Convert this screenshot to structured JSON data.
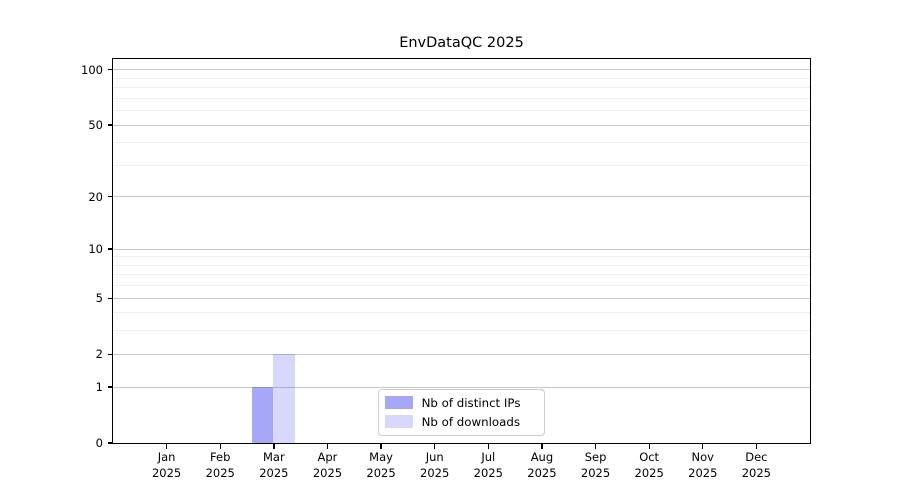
{
  "chart_data": {
    "type": "bar",
    "title": "EnvDataQC 2025",
    "categories": [
      "Jan",
      "Feb",
      "Mar",
      "Apr",
      "May",
      "Jun",
      "Jul",
      "Aug",
      "Sep",
      "Oct",
      "Nov",
      "Dec"
    ],
    "x_year_label": "2025",
    "series": [
      {
        "name": "Nb of distinct IPs",
        "color": "rgba(60,60,240,0.45)",
        "values": [
          0,
          0,
          1,
          0,
          0,
          0,
          0,
          0,
          0,
          0,
          0,
          0
        ]
      },
      {
        "name": "Nb of downloads",
        "color": "rgba(60,60,240,0.2)",
        "values": [
          0,
          0,
          2,
          0,
          0,
          0,
          0,
          0,
          0,
          0,
          0,
          0
        ]
      }
    ],
    "y_axis": {
      "scale": "log1p",
      "ticks": [
        0,
        1,
        2,
        5,
        10,
        20,
        50,
        100
      ],
      "tick_labels": [
        "0",
        "1",
        "2",
        "5",
        "10",
        "20",
        "50",
        "100"
      ],
      "minor_gridlines": [
        3,
        4,
        6,
        7,
        8,
        9,
        30,
        40,
        60,
        70,
        80,
        90
      ],
      "ylim": [
        0,
        115
      ]
    },
    "legend_position": "lower center",
    "grid": true
  },
  "colors": {
    "major_grid": "#c9c9c9",
    "minor_grid": "#efefef",
    "axis": "#000000",
    "background": "#ffffff"
  }
}
